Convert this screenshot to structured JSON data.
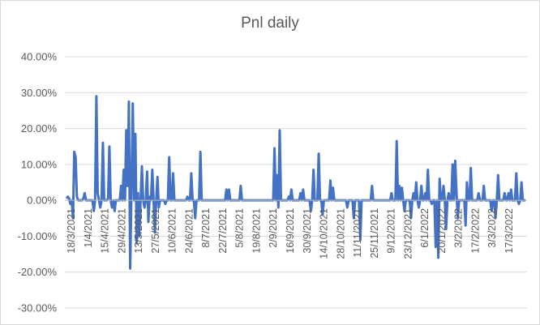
{
  "chart_data": {
    "type": "line",
    "title": "Pnl daily",
    "xlabel": "",
    "ylabel": "",
    "ylim": [
      -0.3,
      0.4
    ],
    "y_ticks": [
      "40.00%",
      "30.00%",
      "20.00%",
      "10.00%",
      "0.00%",
      "-10.00%",
      "-20.00%",
      "-30.00%"
    ],
    "y_tick_values": [
      0.4,
      0.3,
      0.2,
      0.1,
      0.0,
      -0.1,
      -0.2,
      -0.3
    ],
    "grid": "horizontal",
    "legend": "none",
    "series_color": "#4472c4",
    "x_tick_labels": [
      "18/3/2021",
      "1/4/2021",
      "15/4/2021",
      "29/4/2021",
      "13/5/2021",
      "27/5/2021",
      "10/6/2021",
      "24/6/2021",
      "8/7/2021",
      "22/7/2021",
      "5/8/2021",
      "19/8/2021",
      "2/9/2021",
      "16/9/2021",
      "30/9/2021",
      "14/10/2021",
      "28/10/2021",
      "11/11/2021",
      "25/11/2021",
      "9/12/2021",
      "23/12/2021",
      "6/1/2022",
      "20/1/2022",
      "3/2/2022",
      "17/2/2022",
      "3/3/2022",
      "17/3/2022"
    ],
    "series": [
      {
        "values": [
          0.005,
          0.01,
          0.005,
          -0.01,
          0.0,
          -0.05,
          0.135,
          0.12,
          0.01,
          0.0,
          0.0,
          0.0,
          0.0,
          0.005,
          0.02,
          0.0,
          0.0,
          0.0,
          0.0,
          0.0,
          0.0,
          -0.03,
          0.0,
          0.29,
          0.02,
          0.0,
          -0.02,
          0.0,
          0.16,
          0.0,
          0.0,
          0.0,
          0.005,
          0.15,
          0.0,
          -0.02,
          0.0,
          -0.03,
          0.0,
          0.0,
          0.0,
          0.0,
          0.04,
          0.0,
          0.085,
          0.0,
          0.195,
          0.04,
          0.275,
          -0.19,
          0.04,
          0.27,
          0.0,
          0.185,
          -0.12,
          0.02,
          -0.1,
          0.0,
          0.095,
          0.0,
          -0.02,
          0.0,
          0.08,
          -0.06,
          0.01,
          0.0,
          0.085,
          0.0,
          -0.09,
          0.0,
          0.065,
          -0.02,
          0.0,
          0.0,
          0.0,
          0.0,
          -0.01,
          0.0,
          0.0,
          0.12,
          0.0,
          0.0,
          0.075,
          0.0,
          0.0,
          0.0,
          0.0,
          0.0,
          0.0,
          0.0,
          0.0,
          0.0,
          0.0,
          0.01,
          0.0,
          0.0,
          0.075,
          0.0,
          0.0,
          -0.05,
          0.0,
          0.0,
          0.0,
          0.135,
          0.0,
          0.0,
          0.0,
          0.0,
          0.0,
          0.0,
          0.0,
          0.0,
          0.0,
          0.0,
          0.0,
          0.0,
          0.0,
          0.0,
          0.0,
          0.0,
          0.0,
          0.0,
          0.0,
          0.03,
          0.0,
          0.03,
          0.0,
          0.0,
          0.0,
          0.0,
          0.0,
          0.0,
          0.0,
          0.0,
          0.04,
          0.0,
          0.0,
          0.0,
          0.0,
          0.0,
          0.0,
          0.0,
          0.0,
          0.0,
          0.0,
          0.0,
          0.0,
          0.0,
          0.0,
          0.0,
          0.0,
          0.0,
          0.0,
          0.0,
          0.0,
          0.0,
          0.0,
          0.0,
          0.0,
          0.0,
          0.145,
          0.0,
          0.07,
          -0.02,
          0.195,
          0.0,
          0.0,
          0.0,
          0.0,
          0.0,
          0.0,
          0.01,
          0.0,
          0.03,
          0.0,
          0.0,
          0.0,
          0.0,
          0.0,
          0.0,
          0.02,
          0.0,
          0.03,
          0.0,
          0.0,
          0.0,
          0.0,
          0.0,
          -0.03,
          0.0,
          0.085,
          0.0,
          0.0,
          0.0,
          0.13,
          0.0,
          0.0,
          -0.04,
          0.0,
          0.0,
          0.0,
          0.0,
          0.0,
          0.055,
          0.0,
          0.035,
          0.0,
          0.0,
          0.0,
          0.0,
          0.0,
          0.0,
          0.0,
          0.0,
          0.0,
          0.0,
          -0.02,
          0.0,
          0.0,
          0.0,
          0.0,
          -0.05,
          0.0,
          0.0,
          0.0,
          0.0,
          -0.11,
          0.0,
          0.0,
          0.0,
          0.0,
          0.0,
          0.0,
          0.0,
          0.0,
          0.04,
          0.0,
          0.0,
          0.0,
          0.0,
          0.0,
          0.0,
          0.0,
          0.0,
          0.0,
          0.0,
          0.0,
          0.0,
          0.0,
          0.0,
          0.02,
          0.0,
          0.0,
          0.0,
          0.165,
          0.0,
          0.04,
          0.0,
          0.035,
          0.0,
          -0.03,
          0.0,
          0.0,
          0.0,
          0.0,
          -0.05,
          0.0,
          0.02,
          0.0,
          0.05,
          0.0,
          -0.02,
          0.0,
          0.04,
          0.0,
          0.0,
          0.02,
          0.0,
          0.085,
          0.0,
          0.0,
          -0.01,
          0.0,
          0.0,
          -0.13,
          0.0,
          -0.16,
          0.06,
          0.0,
          0.0,
          0.04,
          0.0,
          -0.08,
          0.0,
          0.02,
          0.0,
          0.0,
          0.1,
          0.0,
          0.11,
          0.02,
          -0.05,
          0.0,
          0.0,
          0.0,
          0.0,
          0.0,
          -0.07,
          0.05,
          0.0,
          0.0,
          0.09,
          0.0,
          0.0,
          0.0,
          0.0,
          0.0,
          0.02,
          0.0,
          0.0,
          0.0,
          0.04,
          0.0,
          0.0,
          0.0,
          0.0,
          0.0,
          -0.03,
          0.0,
          0.0,
          -0.05,
          0.0,
          0.07,
          0.0,
          0.0,
          0.0,
          0.0,
          0.02,
          0.0,
          0.0,
          0.02,
          0.0,
          0.03,
          0.0,
          0.0,
          0.0,
          0.075,
          0.0,
          -0.01,
          0.0,
          0.05,
          0.0,
          0.0,
          0.0
        ]
      }
    ]
  }
}
